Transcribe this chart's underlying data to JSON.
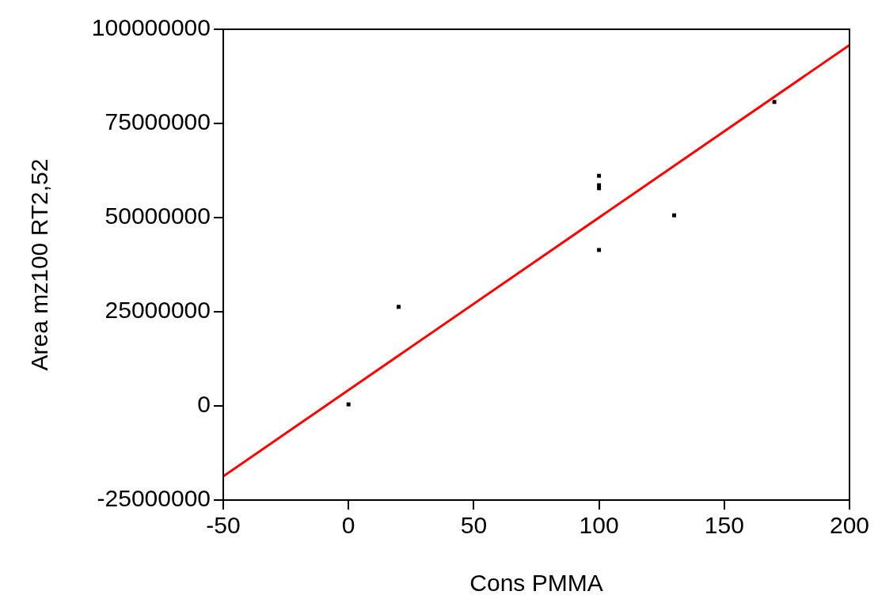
{
  "chart_data": {
    "type": "scatter",
    "xlabel": "Cons PMMA",
    "ylabel": "Area mz100 RT2,52",
    "xlim": [
      -50,
      200
    ],
    "xticks": [
      -50,
      0,
      50,
      100,
      150,
      200
    ],
    "ylim": [
      -25000000,
      100000000
    ],
    "yticks": [
      -25000000,
      0,
      25000000,
      50000000,
      75000000,
      100000000
    ],
    "grid": false,
    "legend": false,
    "series": [
      {
        "type": "scatter",
        "color": "#000000",
        "marker": "square",
        "x": [
          0,
          20,
          100,
          100,
          100,
          100,
          130,
          170
        ],
        "values": [
          400000,
          26300000,
          61100000,
          58600000,
          57800000,
          41400000,
          50600000,
          80700000
        ]
      },
      {
        "type": "line",
        "color": "#ff0000",
        "marker": "none",
        "x": [
          -50,
          200
        ],
        "values": [
          -18700000,
          95800000
        ]
      }
    ]
  }
}
